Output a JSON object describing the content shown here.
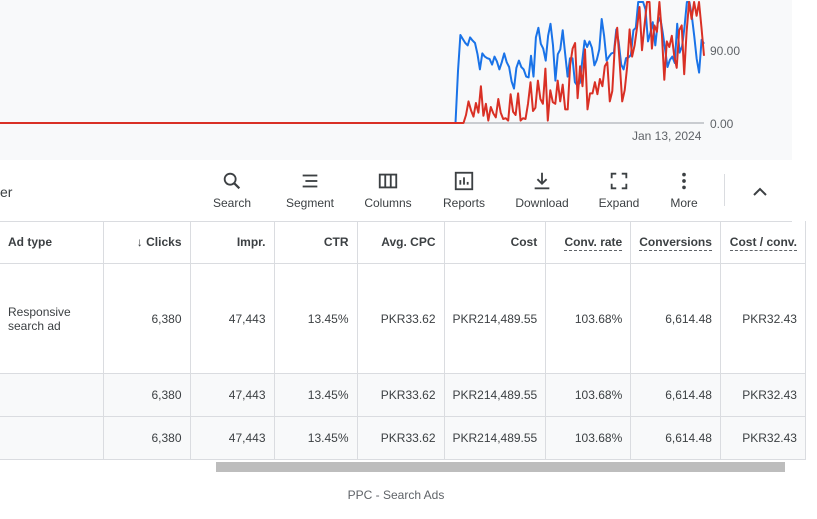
{
  "chart": {
    "y_labels": [
      "90.00",
      "0.00"
    ],
    "x_label": "Jan 13, 2024",
    "colors": {
      "blue": "#1a73e8",
      "red": "#d93025",
      "grid": "#dadce0"
    },
    "chart_data": {
      "type": "line",
      "x_label_end": "Jan 13, 2024",
      "ylim": [
        0,
        180
      ],
      "y_ticks": [
        0,
        90
      ],
      "series": [
        {
          "color": "#1a73e8",
          "values": [
            0,
            0,
            0,
            0,
            0,
            0,
            0,
            0,
            0,
            0,
            0,
            0,
            0,
            0,
            0,
            0,
            0,
            0,
            0,
            0,
            0,
            0,
            0,
            0,
            0,
            0,
            0,
            0,
            0,
            0,
            0,
            0,
            0,
            0,
            0,
            0,
            0,
            0,
            0,
            0,
            0,
            0,
            0,
            0,
            0,
            0,
            0,
            0,
            0,
            0,
            0,
            0,
            0,
            0,
            0,
            0,
            0,
            0,
            0,
            0,
            0,
            0,
            0,
            0,
            0,
            0,
            0,
            0,
            0,
            0,
            0,
            0,
            0,
            0,
            0,
            0,
            0,
            0,
            0,
            0,
            0,
            0,
            0,
            0,
            0,
            0,
            0,
            0,
            0,
            0,
            0,
            0,
            0,
            0,
            0,
            0,
            0,
            0,
            0,
            0,
            0,
            0,
            0,
            0,
            0,
            0,
            0,
            0,
            0,
            0,
            0,
            0,
            0,
            0,
            0,
            0,
            0,
            0,
            0,
            0,
            0,
            0,
            0,
            0,
            0,
            0,
            0,
            0,
            0,
            0,
            0,
            0,
            0,
            0,
            0,
            0,
            0,
            0,
            0,
            0,
            0,
            0,
            0,
            0,
            0,
            0,
            0,
            0,
            0,
            0,
            0,
            0,
            0,
            0,
            0,
            0,
            0,
            0,
            0,
            0,
            0,
            0,
            0,
            0,
            0,
            0,
            0,
            0,
            0,
            0,
            0,
            0,
            0,
            0,
            0,
            0,
            0,
            0,
            0,
            0,
            0,
            0,
            0,
            0,
            0,
            0,
            0,
            0,
            65,
            110,
            105,
            100,
            97,
            107,
            103,
            100,
            86,
            67,
            87,
            83,
            81,
            80,
            73,
            83,
            77,
            67,
            76,
            87,
            76,
            70,
            52,
            43,
            69,
            78,
            70,
            67,
            58,
            57,
            84,
            58,
            107,
            119,
            99,
            93,
            78,
            109,
            124,
            97,
            53,
            86,
            92,
            116,
            87,
            58,
            81,
            81,
            51,
            47,
            50,
            77,
            103,
            95,
            102,
            94,
            72,
            79,
            92,
            130,
            109,
            78,
            83,
            87,
            88,
            117,
            101,
            73,
            67,
            81,
            82,
            85,
            116,
            119,
            153,
            159,
            181,
            142,
            102,
            113,
            126,
            97,
            125,
            132,
            114,
            93,
            70,
            79,
            83,
            75,
            124,
            88,
            96,
            120,
            158,
            177,
            134,
            108,
            80,
            63,
            104,
            99
          ]
        },
        {
          "color": "#d93025",
          "values": [
            0,
            0,
            0,
            0,
            0,
            0,
            0,
            0,
            0,
            0,
            0,
            0,
            0,
            0,
            0,
            0,
            0,
            0,
            0,
            0,
            0,
            0,
            0,
            0,
            0,
            0,
            0,
            0,
            0,
            0,
            0,
            0,
            0,
            0,
            0,
            0,
            0,
            0,
            0,
            0,
            0,
            0,
            0,
            0,
            0,
            0,
            0,
            0,
            0,
            0,
            0,
            0,
            0,
            0,
            0,
            0,
            0,
            0,
            0,
            0,
            0,
            0,
            0,
            0,
            0,
            0,
            0,
            0,
            0,
            0,
            0,
            0,
            0,
            0,
            0,
            0,
            0,
            0,
            0,
            0,
            0,
            0,
            0,
            0,
            0,
            0,
            0,
            0,
            0,
            0,
            0,
            0,
            0,
            0,
            0,
            0,
            0,
            0,
            0,
            0,
            0,
            0,
            0,
            0,
            0,
            0,
            0,
            0,
            0,
            0,
            0,
            0,
            0,
            0,
            0,
            0,
            0,
            0,
            0,
            0,
            0,
            0,
            0,
            0,
            0,
            0,
            0,
            0,
            0,
            0,
            0,
            0,
            0,
            0,
            0,
            0,
            0,
            0,
            0,
            0,
            0,
            0,
            0,
            0,
            0,
            0,
            0,
            0,
            0,
            0,
            0,
            0,
            0,
            0,
            0,
            0,
            0,
            0,
            0,
            0,
            0,
            0,
            0,
            0,
            0,
            0,
            0,
            0,
            0,
            0,
            0,
            0,
            0,
            0,
            0,
            0,
            0,
            0,
            0,
            0,
            0,
            0,
            0,
            0,
            0,
            0,
            0,
            0,
            10,
            27,
            16,
            8,
            25,
            13,
            46,
            9,
            24,
            3,
            20,
            12,
            7,
            30,
            13,
            5,
            6,
            3,
            36,
            14,
            10,
            37,
            3,
            6,
            5,
            24,
            51,
            15,
            19,
            53,
            30,
            24,
            68,
            3,
            41,
            26,
            24,
            53,
            27,
            48,
            17,
            17,
            72,
            93,
            100,
            31,
            71,
            46,
            92,
            17,
            37,
            37,
            51,
            36,
            55,
            46,
            71,
            76,
            27,
            40,
            96,
            119,
            75,
            27,
            41,
            71,
            117,
            83,
            97,
            120,
            145,
            91,
            122,
            157,
            167,
            93,
            122,
            114,
            152,
            111,
            54,
            102,
            95,
            109,
            83,
            69,
            116,
            122,
            61,
            114,
            184,
            130,
            182,
            134,
            166,
            119,
            84
          ]
        }
      ]
    }
  },
  "toolbar": {
    "filter_text": "er",
    "buttons": [
      {
        "label": "Search"
      },
      {
        "label": "Segment"
      },
      {
        "label": "Columns"
      },
      {
        "label": "Reports"
      },
      {
        "label": "Download"
      },
      {
        "label": "Expand"
      },
      {
        "label": "More"
      }
    ]
  },
  "table": {
    "headers": [
      "Ad type",
      "Clicks",
      "Impr.",
      "CTR",
      "Avg. CPC",
      "Cost",
      "Conv. rate",
      "Conversions",
      "Cost / conv."
    ],
    "sort_arrow": "↓",
    "rows": [
      [
        "Responsive search ad",
        "6,380",
        "47,443",
        "13.45%",
        "PKR33.62",
        "PKR214,489.55",
        "103.68%",
        "6,614.48",
        "PKR32.43"
      ],
      [
        "",
        "6,380",
        "47,443",
        "13.45%",
        "PKR33.62",
        "PKR214,489.55",
        "103.68%",
        "6,614.48",
        "PKR32.43"
      ],
      [
        "",
        "6,380",
        "47,443",
        "13.45%",
        "PKR33.62",
        "PKR214,489.55",
        "103.68%",
        "6,614.48",
        "PKR32.43"
      ]
    ]
  },
  "caption": "PPC - Search Ads"
}
